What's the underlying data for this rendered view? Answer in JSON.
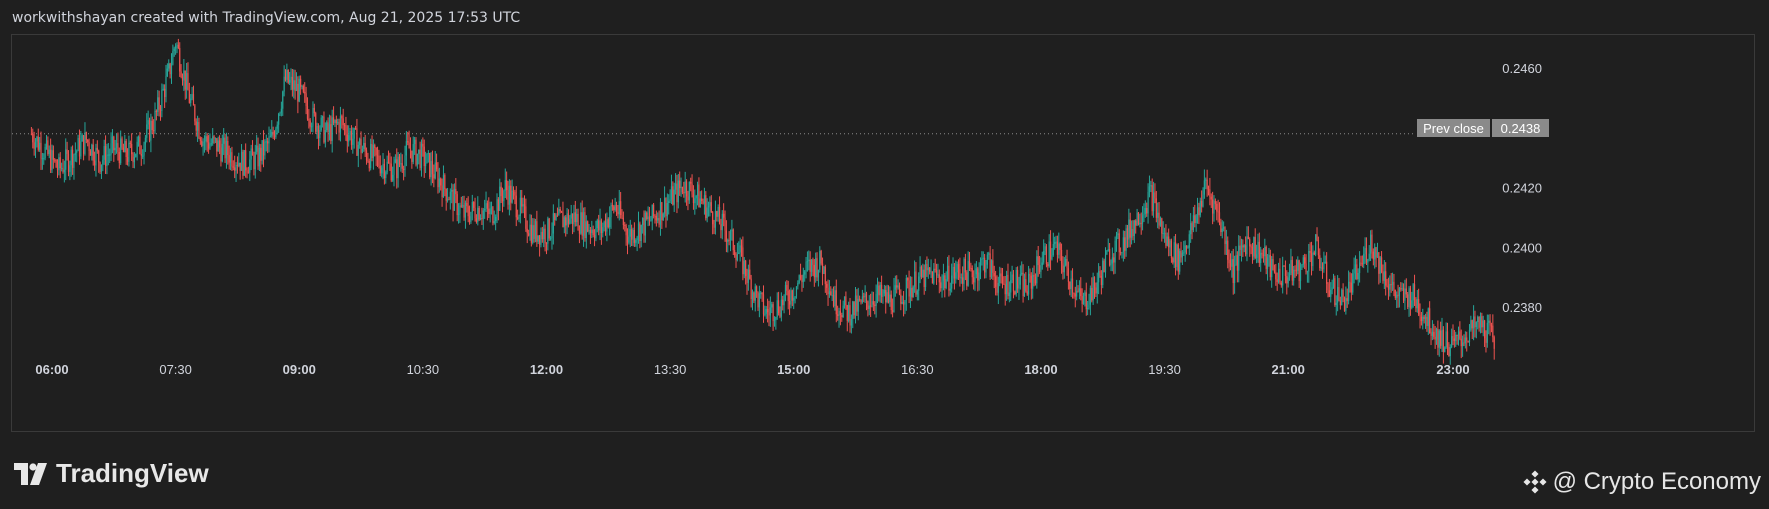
{
  "header": {
    "credit": "workwithshayan created with TradingView.com, Aug 21, 2025 17:53 UTC"
  },
  "brand": {
    "name": "TradingView"
  },
  "watermark": {
    "text": "@ Crypto Economy",
    "icon": "binance-diamond-icon"
  },
  "colors": {
    "up": "#26a69a",
    "down": "#ef5350",
    "prev_close": "#8a8a8a",
    "background": "#1f1f1f"
  },
  "chart_data": {
    "type": "candlestick",
    "title": "",
    "xlabel": "",
    "ylabel": "",
    "x_ticks": [
      {
        "label": "06:00",
        "bold": true
      },
      {
        "label": "07:30",
        "bold": false
      },
      {
        "label": "09:00",
        "bold": true
      },
      {
        "label": "10:30",
        "bold": false
      },
      {
        "label": "12:00",
        "bold": true
      },
      {
        "label": "13:30",
        "bold": false
      },
      {
        "label": "15:00",
        "bold": true
      },
      {
        "label": "16:30",
        "bold": false
      },
      {
        "label": "18:00",
        "bold": true
      },
      {
        "label": "19:30",
        "bold": false
      },
      {
        "label": "21:00",
        "bold": true
      },
      {
        "label": "23:00",
        "bold": true
      }
    ],
    "y_ticks": [
      "0.2460",
      "0.2440",
      "0.2420",
      "0.2400",
      "0.2380"
    ],
    "ylim": [
      0.2365,
      0.2471
    ],
    "prev_close": {
      "label": "Prev close",
      "value": "0.2438"
    },
    "price_path": [
      [
        "05:45",
        0.2438
      ],
      [
        "05:55",
        0.2432
      ],
      [
        "06:05",
        0.2426
      ],
      [
        "06:15",
        0.2431
      ],
      [
        "06:25",
        0.2436
      ],
      [
        "06:35",
        0.2429
      ],
      [
        "06:45",
        0.2433
      ],
      [
        "06:55",
        0.2431
      ],
      [
        "07:05",
        0.2434
      ],
      [
        "07:15",
        0.2443
      ],
      [
        "07:25",
        0.2458
      ],
      [
        "07:30",
        0.2469
      ],
      [
        "07:40",
        0.245
      ],
      [
        "07:50",
        0.2436
      ],
      [
        "08:00",
        0.2434
      ],
      [
        "08:10",
        0.2431
      ],
      [
        "08:20",
        0.2428
      ],
      [
        "08:30",
        0.243
      ],
      [
        "08:40",
        0.2436
      ],
      [
        "08:50",
        0.2456
      ],
      [
        "09:00",
        0.2452
      ],
      [
        "09:10",
        0.2443
      ],
      [
        "09:20",
        0.2438
      ],
      [
        "09:30",
        0.2442
      ],
      [
        "09:40",
        0.2436
      ],
      [
        "09:50",
        0.2431
      ],
      [
        "10:00",
        0.2428
      ],
      [
        "10:10",
        0.2426
      ],
      [
        "10:20",
        0.2433
      ],
      [
        "10:30",
        0.243
      ],
      [
        "10:40",
        0.2424
      ],
      [
        "10:50",
        0.2417
      ],
      [
        "11:00",
        0.2411
      ],
      [
        "11:10",
        0.2413
      ],
      [
        "11:20",
        0.2411
      ],
      [
        "11:30",
        0.242
      ],
      [
        "11:40",
        0.2413
      ],
      [
        "11:50",
        0.2405
      ],
      [
        "12:00",
        0.2405
      ],
      [
        "12:10",
        0.2409
      ],
      [
        "12:20",
        0.241
      ],
      [
        "12:30",
        0.2407
      ],
      [
        "12:40",
        0.2406
      ],
      [
        "12:50",
        0.2414
      ],
      [
        "13:00",
        0.2404
      ],
      [
        "13:10",
        0.2407
      ],
      [
        "13:20",
        0.2411
      ],
      [
        "13:30",
        0.2416
      ],
      [
        "13:40",
        0.2421
      ],
      [
        "13:50",
        0.2417
      ],
      [
        "14:00",
        0.2412
      ],
      [
        "14:10",
        0.2406
      ],
      [
        "14:20",
        0.2398
      ],
      [
        "14:30",
        0.2386
      ],
      [
        "14:40",
        0.2378
      ],
      [
        "14:50",
        0.2381
      ],
      [
        "15:00",
        0.2386
      ],
      [
        "15:10",
        0.2393
      ],
      [
        "15:20",
        0.2395
      ],
      [
        "15:30",
        0.2382
      ],
      [
        "15:40",
        0.2378
      ],
      [
        "15:50",
        0.2381
      ],
      [
        "16:00",
        0.2384
      ],
      [
        "16:10",
        0.2382
      ],
      [
        "16:20",
        0.2385
      ],
      [
        "16:30",
        0.2389
      ],
      [
        "16:40",
        0.2391
      ],
      [
        "16:50",
        0.2389
      ],
      [
        "17:00",
        0.2392
      ],
      [
        "17:10",
        0.2391
      ],
      [
        "17:20",
        0.2396
      ],
      [
        "17:30",
        0.2387
      ],
      [
        "17:40",
        0.2389
      ],
      [
        "17:50",
        0.2386
      ],
      [
        "18:00",
        0.2396
      ],
      [
        "18:10",
        0.24
      ],
      [
        "18:20",
        0.2391
      ],
      [
        "18:30",
        0.2381
      ],
      [
        "18:40",
        0.2387
      ],
      [
        "18:50",
        0.2398
      ],
      [
        "19:00",
        0.2402
      ],
      [
        "19:10",
        0.241
      ],
      [
        "19:20",
        0.2418
      ],
      [
        "19:30",
        0.2403
      ],
      [
        "19:40",
        0.2396
      ],
      [
        "19:50",
        0.2406
      ],
      [
        "20:00",
        0.2421
      ],
      [
        "20:10",
        0.241
      ],
      [
        "20:20",
        0.2392
      ],
      [
        "20:30",
        0.2403
      ],
      [
        "20:40",
        0.2398
      ],
      [
        "20:50",
        0.2391
      ],
      [
        "21:00",
        0.2391
      ],
      [
        "21:10",
        0.2393
      ],
      [
        "21:20",
        0.24
      ],
      [
        "21:30",
        0.2387
      ],
      [
        "21:40",
        0.2382
      ],
      [
        "21:50",
        0.2391
      ],
      [
        "22:00",
        0.2402
      ],
      [
        "22:10",
        0.2391
      ],
      [
        "22:20",
        0.2383
      ],
      [
        "22:30",
        0.2384
      ],
      [
        "22:40",
        0.2377
      ],
      [
        "22:50",
        0.237
      ],
      [
        "23:00",
        0.2367
      ],
      [
        "23:10",
        0.2371
      ],
      [
        "23:20",
        0.2374
      ],
      [
        "23:30",
        0.2369
      ]
    ]
  }
}
